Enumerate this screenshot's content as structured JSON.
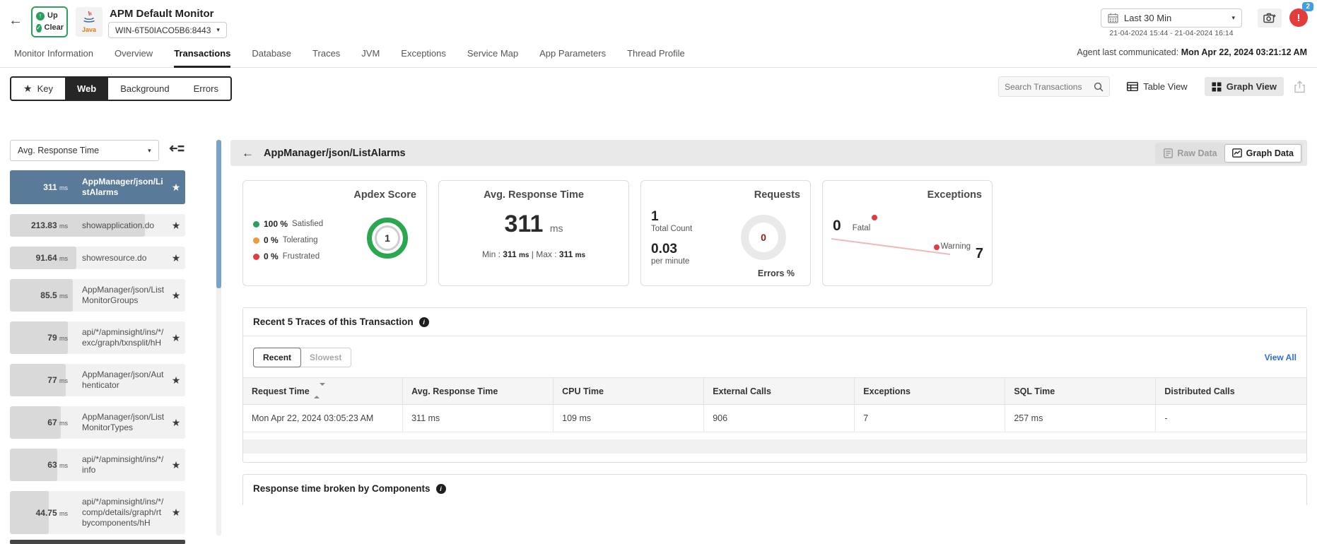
{
  "icons": {
    "back_arrow": "←",
    "star": "★",
    "caret": "▾",
    "check": "✓",
    "up_arrow": "↑",
    "exclaim": "!",
    "info": "i"
  },
  "header": {
    "status": {
      "up": "Up",
      "clear": "Clear"
    },
    "app_type": "Java",
    "title": "APM Default Monitor",
    "host": "WIN-6T50IACO5B6:8443",
    "time_range": {
      "label": "Last 30 Min",
      "range": "21-04-2024 15:44 - 21-04-2024 16:14"
    },
    "alert_count": "2",
    "agent_label": "Agent last communicated: ",
    "agent_value": "Mon Apr 22, 2024 03:21:12 AM"
  },
  "nav_tabs": [
    "Monitor Information",
    "Overview",
    "Transactions",
    "Database",
    "Traces",
    "JVM",
    "Exceptions",
    "Service Map",
    "App Parameters",
    "Thread Profile"
  ],
  "subtabs": {
    "key": "Key",
    "web": "Web",
    "background": "Background",
    "errors": "Errors"
  },
  "toolbar": {
    "search_placeholder": "Search Transactions",
    "table_view": "Table View",
    "graph_view": "Graph View"
  },
  "sidebar": {
    "metric_dropdown": "Avg. Response Time",
    "unit": "ms",
    "items": [
      {
        "time": "311",
        "label": "AppManager/json/ListAlarms",
        "bar_pct": 100,
        "selected": true
      },
      {
        "time": "213.83",
        "label": "showapplication.do",
        "bar_pct": 77
      },
      {
        "time": "91.64",
        "label": "showresource.do",
        "bar_pct": 38
      },
      {
        "time": "85.5",
        "label": "AppManager/json/ListMonitorGroups",
        "bar_pct": 36
      },
      {
        "time": "79",
        "label": "api/*/apminsight/ins/*/exc/graph/txnsplit/hH",
        "bar_pct": 33
      },
      {
        "time": "77",
        "label": "AppManager/json/Authenticator",
        "bar_pct": 32
      },
      {
        "time": "67",
        "label": "AppManager/json/ListMonitorTypes",
        "bar_pct": 29
      },
      {
        "time": "63",
        "label": "api/*/apminsight/ins/*/info",
        "bar_pct": 27
      },
      {
        "time": "44.75",
        "label": "api/*/apminsight/ins/*/comp/details/graph/rtbycomponents/hH",
        "bar_pct": 22
      }
    ]
  },
  "main": {
    "title": "AppManager/json/ListAlarms",
    "raw_data": "Raw Data",
    "graph_data": "Graph Data",
    "cards": {
      "apdex": {
        "title": "Apdex Score",
        "score": "1",
        "satisfied_pct": "100 %",
        "satisfied": "Satisfied",
        "tolerating_pct": "0 %",
        "tolerating": "Tolerating",
        "frustrated_pct": "0 %",
        "frustrated": "Frustrated",
        "colors": {
          "satisfied": "#27a05a",
          "tolerating": "#eb9d3e",
          "frustrated": "#e23b41",
          "ring": "#2aa84f"
        }
      },
      "avg_response": {
        "title": "Avg. Response Time",
        "value": "311",
        "unit": "ms",
        "min_label": "Min : ",
        "min_value": "311",
        "min_unit": "ms",
        "sep": " | ",
        "max_label": "Max : ",
        "max_value": "311",
        "max_unit": "ms"
      },
      "requests": {
        "title": "Requests",
        "total": "1",
        "total_label": "Total Count",
        "per_minute": "0.03",
        "per_minute_label": "per minute",
        "errors_value": "0",
        "errors_label": "Errors %"
      },
      "exceptions": {
        "title": "Exceptions",
        "fatal_value": "0",
        "fatal_label": "Fatal",
        "warning_label": "Warning",
        "warning_value": "7"
      }
    },
    "traces": {
      "title": "Recent 5 Traces of this Transaction",
      "recent": "Recent",
      "slowest": "Slowest",
      "view_all": "View All",
      "columns": [
        "Request Time",
        "Avg. Response Time",
        "CPU Time",
        "External Calls",
        "Exceptions",
        "SQL Time",
        "Distributed Calls"
      ],
      "rows": [
        [
          "Mon Apr 22, 2024 03:05:23 AM",
          "311 ms",
          "109 ms",
          "906",
          "7",
          "257 ms",
          "-"
        ]
      ]
    },
    "components": {
      "title": "Response time broken by Components"
    }
  }
}
